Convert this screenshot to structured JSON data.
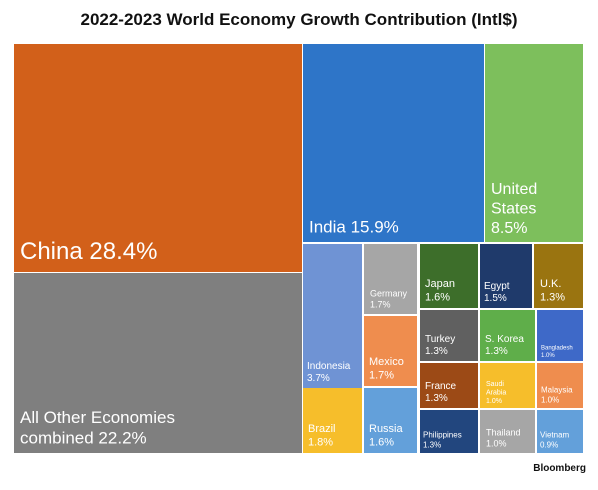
{
  "chart_data": {
    "type": "treemap",
    "title": "2022-2023 World Economy Growth Contribution (Intl$)",
    "source": "Bloomberg",
    "unit": "%",
    "items": [
      {
        "name": "China",
        "value": 28.4,
        "label": [
          "China 28.4%"
        ],
        "color": "#D2601A"
      },
      {
        "name": "All Other Economies combined",
        "value": 22.2,
        "label": [
          "All Other Economies",
          "combined 22.2%"
        ],
        "color": "#7F7F7F"
      },
      {
        "name": "India",
        "value": 15.9,
        "label": [
          "India 15.9%"
        ],
        "color": "#2E75C8"
      },
      {
        "name": "United States",
        "value": 8.5,
        "label": [
          "United",
          "States",
          "8.5%"
        ],
        "color": "#7DBF5C"
      },
      {
        "name": "Indonesia",
        "value": 3.7,
        "label": [
          "Indonesia",
          "3.7%"
        ],
        "color": "#6F93D4"
      },
      {
        "name": "Germany",
        "value": 1.7,
        "label": [
          "Germany",
          "1.7%"
        ],
        "color": "#A6A6A6"
      },
      {
        "name": "Mexico",
        "value": 1.7,
        "label": [
          "Mexico",
          "1.7%"
        ],
        "color": "#EF8D4E"
      },
      {
        "name": "Brazil",
        "value": 1.8,
        "label": [
          "Brazil",
          "1.8%"
        ],
        "color": "#F6BE2B"
      },
      {
        "name": "Russia",
        "value": 1.6,
        "label": [
          "Russia",
          "1.6%"
        ],
        "color": "#63A0DA"
      },
      {
        "name": "Japan",
        "value": 1.6,
        "label": [
          "Japan",
          "1.6%"
        ],
        "color": "#3D6E2A"
      },
      {
        "name": "Egypt",
        "value": 1.5,
        "label": [
          "Egypt",
          "1.5%"
        ],
        "color": "#1F3A6B"
      },
      {
        "name": "U.K.",
        "value": 1.3,
        "label": [
          "U.K.",
          "1.3%"
        ],
        "color": "#9A7410"
      },
      {
        "name": "Turkey",
        "value": 1.3,
        "label": [
          "Turkey",
          "1.3%"
        ],
        "color": "#606060"
      },
      {
        "name": "S. Korea",
        "value": 1.3,
        "label": [
          "S. Korea",
          "1.3%"
        ],
        "color": "#5FAE4A"
      },
      {
        "name": "Bangladesh",
        "value": 1.0,
        "label": [
          "Bangladesh",
          "1.0%"
        ],
        "color": "#3E69C8"
      },
      {
        "name": "France",
        "value": 1.3,
        "label": [
          "France",
          "1.3%"
        ],
        "color": "#9C4A16"
      },
      {
        "name": "Saudi Arabia",
        "value": 1.0,
        "label": [
          "Saudi",
          "Arabia",
          "1.0%"
        ],
        "color": "#F6BE2B"
      },
      {
        "name": "Malaysia",
        "value": 1.0,
        "label": [
          "Malaysia",
          "1.0%"
        ],
        "color": "#EF8D4E"
      },
      {
        "name": "Philippines",
        "value": 1.3,
        "label": [
          "Philippines",
          "1.3%"
        ],
        "color": "#22467E"
      },
      {
        "name": "Thailand",
        "value": 1.0,
        "label": [
          "Thailand",
          "1.0%"
        ],
        "color": "#A6A6A6"
      },
      {
        "name": "Vietnam",
        "value": 0.9,
        "label": [
          "Vietnam",
          "0.9%"
        ],
        "color": "#63A0DA"
      }
    ]
  }
}
